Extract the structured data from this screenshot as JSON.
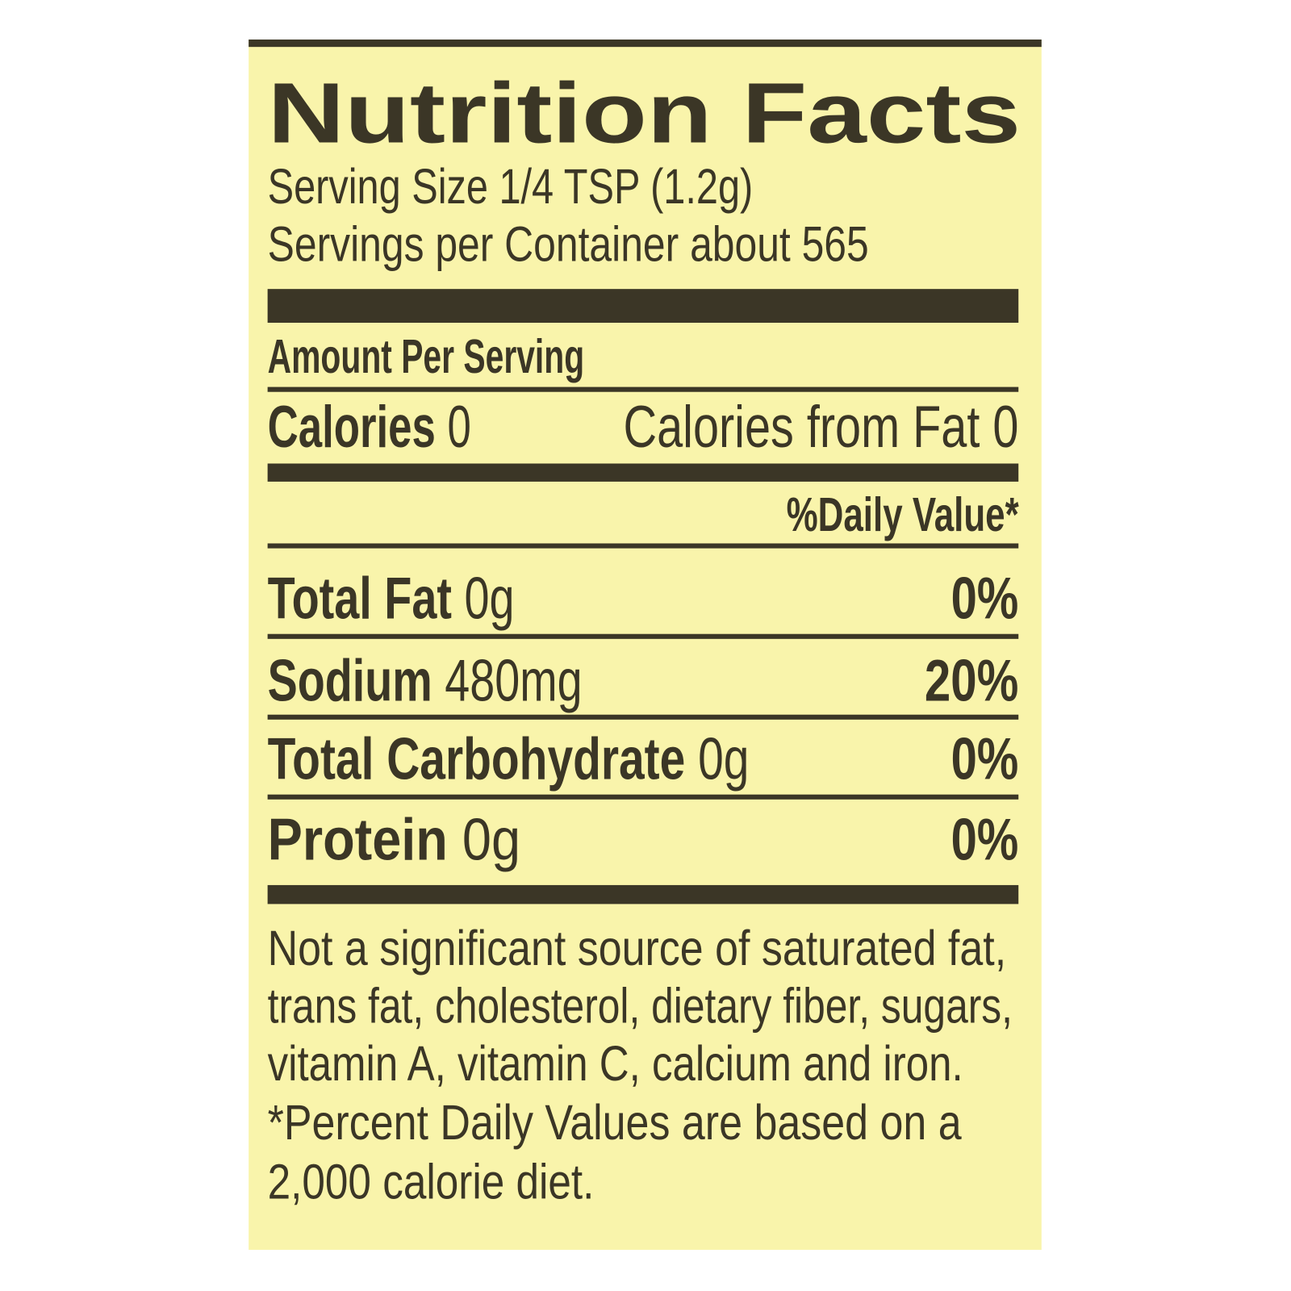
{
  "colors": {
    "panel": "#f9f4ab",
    "ink": "#3b3626"
  },
  "title": "Nutrition Facts",
  "serving_size": "Serving Size 1/4 TSP (1.2g)",
  "servings_per_container": "Servings per Container about 565",
  "amount_per_serving": "Amount Per Serving",
  "calories": {
    "label": "Calories",
    "value": "0"
  },
  "calories_from_fat": "Calories from Fat 0",
  "daily_value_header": "%Daily Value*",
  "nutrients": [
    {
      "name": "Total Fat",
      "amount": "0g",
      "dv": "0%"
    },
    {
      "name": "Sodium",
      "amount": "480mg",
      "dv": "20%"
    },
    {
      "name": "Total Carbohydrate",
      "amount": "0g",
      "dv": "0%"
    },
    {
      "name": "Protein",
      "amount": "0g",
      "dv": "0%"
    }
  ],
  "footnotes": [
    "Not a significant source of saturated fat,",
    "trans fat, cholesterol, dietary fiber, sugars,",
    "vitamin A, vitamin C, calcium and iron.",
    "*Percent Daily Values are based on a",
    "2,000 calorie diet."
  ]
}
